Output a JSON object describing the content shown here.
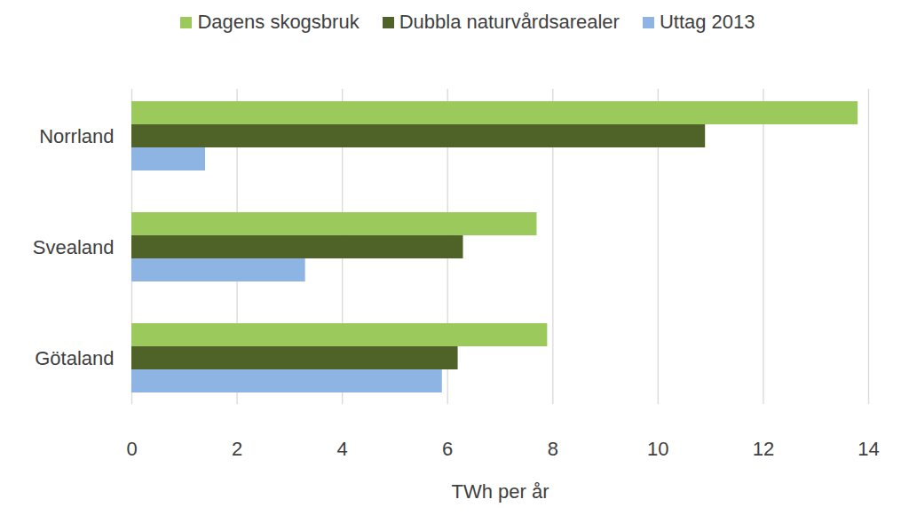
{
  "chart_data": {
    "type": "bar",
    "orientation": "horizontal",
    "categories": [
      "Norrland",
      "Svealand",
      "Götaland"
    ],
    "series": [
      {
        "name": "Dagens skogsbruk",
        "color": "#9bc95c",
        "values": [
          13.8,
          7.7,
          7.9
        ]
      },
      {
        "name": "Dubbla naturvårdsarealer",
        "color": "#4f6228",
        "values": [
          10.9,
          6.3,
          6.2
        ]
      },
      {
        "name": "Uttag 2013",
        "color": "#8eb4e3",
        "values": [
          1.4,
          3.3,
          5.9
        ]
      }
    ],
    "x_label": "TWh per år",
    "xlim": [
      0,
      14
    ],
    "xticks": [
      0,
      2,
      4,
      6,
      8,
      10,
      12,
      14
    ],
    "grid": true,
    "legend": "top"
  }
}
